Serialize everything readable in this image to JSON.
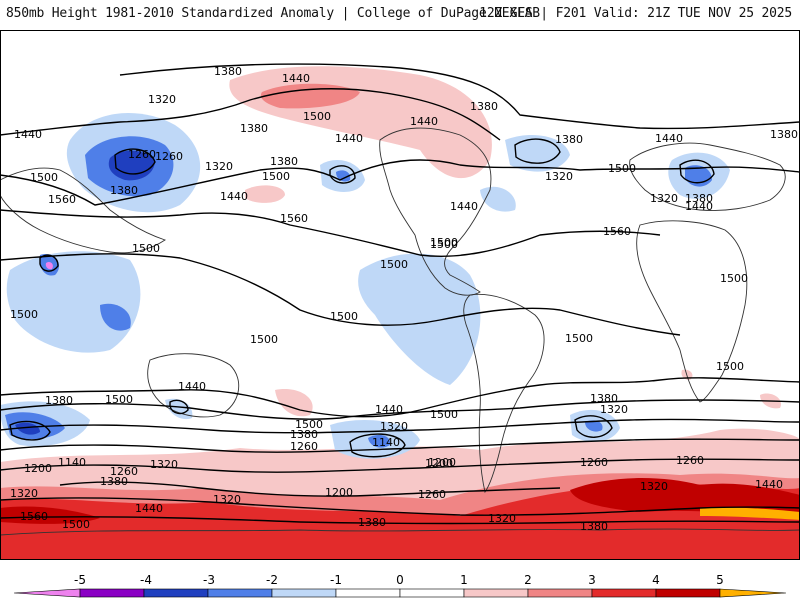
{
  "header": {
    "title_left": "850mb Height 1981-2010 Standardized Anomaly | College of DuPage NEXLAB",
    "title_right": "12Z GFS | F201 Valid: 21Z TUE NOV 25 2025"
  },
  "map": {
    "contour_labels": [
      "1380",
      "1440",
      "1500",
      "1320",
      "1260",
      "1380",
      "1440",
      "1380",
      "1320",
      "1500",
      "1560",
      "1380",
      "1500",
      "1440",
      "1260",
      "1380",
      "1440",
      "1320",
      "1500",
      "1380",
      "1440",
      "1560",
      "1500",
      "1500",
      "1440",
      "1500",
      "1500",
      "1560",
      "1500",
      "1500",
      "1380",
      "1440",
      "1320",
      "1380",
      "1500",
      "1440",
      "1380",
      "1320",
      "1260",
      "1440",
      "1380",
      "1320",
      "1260",
      "1140",
      "1200",
      "1380",
      "1320",
      "1260",
      "1200",
      "1260",
      "1320",
      "1380",
      "1440",
      "1140",
      "1200",
      "1320",
      "1260",
      "1500",
      "1380",
      "1320",
      "1200",
      "1440",
      "1560",
      "1500",
      "1380",
      "1320",
      "1440",
      "1500",
      "1500",
      "1500",
      "1500",
      "1500"
    ],
    "colors": {
      "anom_neg5": "#ee82ee",
      "anom_neg4": "#8a00c4",
      "anom_neg3": "#1f3fbf",
      "anom_neg2": "#4f7fe8",
      "anom_neg1": "#bfd8f7",
      "anom_pos1": "#f7c8c8",
      "anom_pos2": "#f08585",
      "anom_pos3": "#e32b2b",
      "anom_pos4": "#c00000",
      "anom_pos5": "#ffb000",
      "land_outline": "#333333",
      "contour": "#000000"
    }
  },
  "colorbar": {
    "ticks": [
      "-5",
      "-4",
      "-3",
      "-2",
      "-1",
      "0",
      "1",
      "2",
      "3",
      "4",
      "5"
    ],
    "segment_colors": [
      "#ee82ee",
      "#8a00c4",
      "#1f3fbf",
      "#4f7fe8",
      "#bfd8f7",
      "#ffffff",
      "#ffffff",
      "#f7c8c8",
      "#f08585",
      "#e32b2b",
      "#c00000",
      "#ffb000"
    ]
  }
}
